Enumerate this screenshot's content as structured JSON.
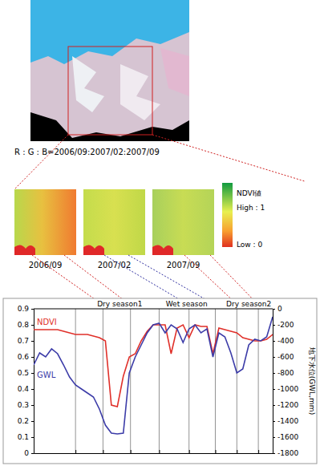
{
  "images": {
    "caption": "R : G : B=2006/09:2007/02:2007/09",
    "map_labels": [
      "2006/09",
      "2007/02",
      "2007/09"
    ],
    "colorbar": {
      "title": "NDVI値",
      "high_label": "High : 1",
      "low_label": "Low : 0"
    }
  },
  "chart_data": {
    "type": "line",
    "x": [
      0,
      2.5,
      5,
      7.5,
      10,
      12.5,
      15,
      17.5,
      20,
      22.5,
      25,
      27.5,
      30,
      32.5,
      35,
      37.5,
      40,
      42.5,
      45,
      47.5,
      50,
      52.5,
      55,
      57.5,
      60,
      62.5,
      65,
      67.5,
      70,
      72.5,
      75,
      77.5,
      80,
      82.5,
      85,
      87.5,
      90,
      92.5,
      95,
      97.5,
      100
    ],
    "xlim": [
      0,
      100
    ],
    "xticks": [
      17.5,
      29,
      40.5,
      52.5,
      65,
      76,
      85,
      94
    ],
    "ylim": [
      0,
      0.9
    ],
    "yticks": [
      0,
      0.1,
      0.2,
      0.3,
      0.4,
      0.5,
      0.6,
      0.7,
      0.8,
      0.9
    ],
    "y2lim": [
      -1800,
      0
    ],
    "y2ticks": [
      -1800,
      -1600,
      -1400,
      -1200,
      -1000,
      -800,
      -600,
      -400,
      -200,
      0
    ],
    "y2label": "地下水位(GWL,mm)",
    "grid": "x",
    "tick_labels": "y",
    "annotations": [
      {
        "text": "Dry season1",
        "x": 36
      },
      {
        "text": "Wet season",
        "x": 64
      },
      {
        "text": "Dry season2",
        "x": 90
      }
    ],
    "series": [
      {
        "name": "NDVI",
        "color": "#e0302a",
        "values": [
          0.77,
          0.77,
          0.77,
          0.77,
          0.77,
          0.76,
          0.75,
          0.74,
          0.74,
          0.74,
          0.73,
          0.72,
          0.7,
          0.3,
          0.29,
          0.48,
          0.6,
          0.62,
          0.7,
          0.76,
          0.8,
          0.8,
          0.8,
          0.62,
          0.78,
          0.8,
          0.72,
          0.8,
          0.79,
          0.79,
          0.62,
          0.78,
          0.77,
          0.76,
          0.75,
          0.72,
          0.71,
          0.7,
          0.7,
          0.71,
          0.74
        ]
      },
      {
        "name": "GWL",
        "color": "#3c3ca8",
        "axis": "y2",
        "values": [
          -700,
          -550,
          -600,
          -500,
          -560,
          -700,
          -850,
          -950,
          -1000,
          -1050,
          -1100,
          -1250,
          -1450,
          -1550,
          -1560,
          -1550,
          -800,
          -600,
          -450,
          -300,
          -200,
          -180,
          -300,
          -200,
          -250,
          -420,
          -250,
          -200,
          -300,
          -250,
          -600,
          -300,
          -350,
          -550,
          -800,
          -750,
          -450,
          -380,
          -400,
          -350,
          -100
        ]
      }
    ]
  }
}
